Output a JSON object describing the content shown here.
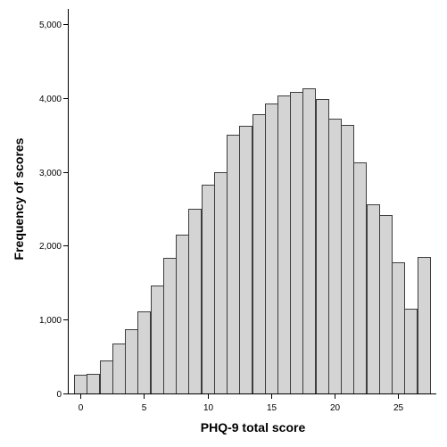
{
  "chart_data": {
    "type": "bar",
    "title": "",
    "xlabel": "PHQ-9 total score",
    "ylabel": "Frequency of scores",
    "categories": [
      0,
      1,
      2,
      3,
      4,
      5,
      6,
      7,
      8,
      9,
      10,
      11,
      12,
      13,
      14,
      15,
      16,
      17,
      18,
      19,
      20,
      21,
      22,
      23,
      24,
      25,
      26,
      27
    ],
    "values": [
      250,
      260,
      450,
      680,
      870,
      1110,
      1460,
      1830,
      2150,
      2500,
      2830,
      2990,
      3500,
      3620,
      3780,
      3920,
      4030,
      4080,
      4130,
      3980,
      3720,
      3630,
      3130,
      2560,
      2420,
      1780,
      1150,
      1850
    ],
    "xlim": [
      -1,
      28
    ],
    "ylim": [
      0,
      5200
    ],
    "x_ticks": [
      0,
      5,
      10,
      15,
      20,
      25
    ],
    "x_tick_labels": [
      "0",
      "5",
      "10",
      "15",
      "20",
      "25"
    ],
    "y_ticks": [
      0,
      1000,
      2000,
      3000,
      4000,
      5000
    ],
    "y_tick_labels": [
      "0",
      "1,000",
      "2,000",
      "3,000",
      "4,000",
      "5,000"
    ],
    "grid": false,
    "legend": "none",
    "bar_color": "#d4d4d4",
    "bar_edge_color": "#3d3d3d",
    "axis_color": "#000000",
    "background_color": "#ffffff"
  }
}
